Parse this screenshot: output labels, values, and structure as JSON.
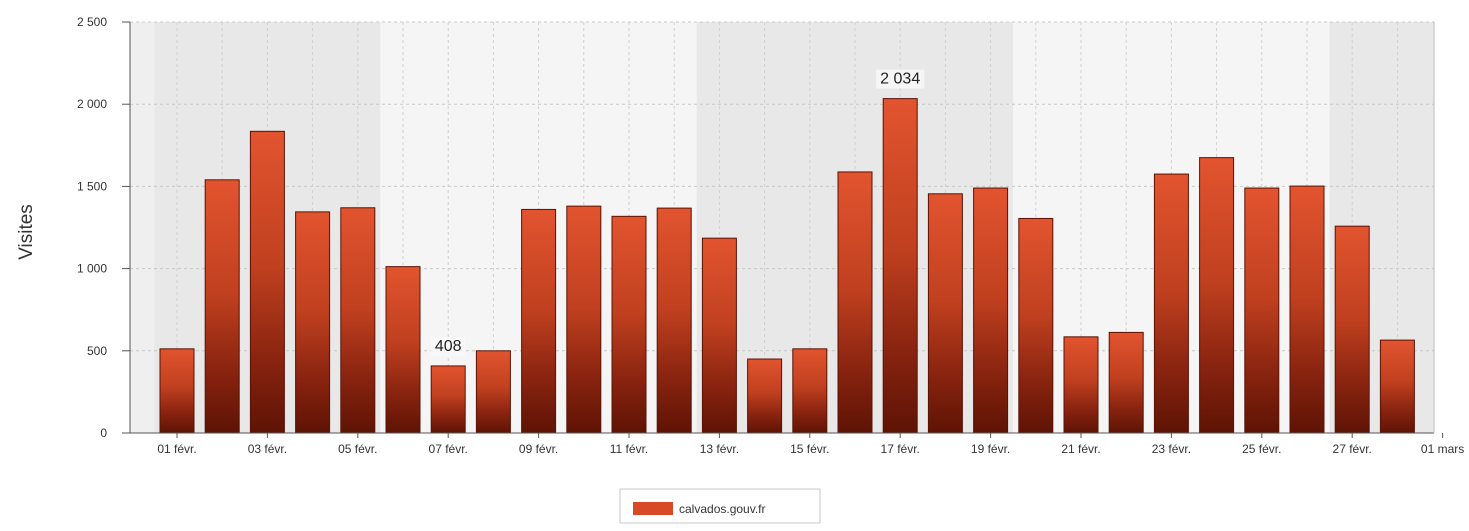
{
  "chart_data": {
    "type": "bar",
    "ylabel": "Visites",
    "xlabel": "",
    "ylim": [
      0,
      2500
    ],
    "y_ticks": [
      0,
      500,
      1000,
      1500,
      2000,
      2500
    ],
    "y_tick_labels": [
      "0",
      "500",
      "1 000",
      "1 500",
      "2 000",
      "2 500"
    ],
    "x_tick_labels": [
      "01 févr.",
      "03 févr.",
      "05 févr.",
      "07 févr.",
      "09 févr.",
      "11 févr.",
      "13 févr.",
      "15 févr.",
      "17 févr.",
      "19 févr.",
      "21 févr.",
      "23 févr.",
      "25 févr.",
      "27 févr.",
      "01 mars"
    ],
    "categories": [
      "01 févr.",
      "02 févr.",
      "03 févr.",
      "04 févr.",
      "05 févr.",
      "06 févr.",
      "07 févr.",
      "08 févr.",
      "09 févr.",
      "10 févr.",
      "11 févr.",
      "12 févr.",
      "13 févr.",
      "14 févr.",
      "15 févr.",
      "16 févr.",
      "17 févr.",
      "18 févr.",
      "19 févr.",
      "20 févr.",
      "21 févr.",
      "22 févr.",
      "23 févr.",
      "24 févr.",
      "25 févr.",
      "26 févr.",
      "27 févr.",
      "28 févr."
    ],
    "series": [
      {
        "name": "calvados.gouv.fr",
        "values": [
          512,
          1540,
          1835,
          1345,
          1370,
          1012,
          408,
          500,
          1360,
          1380,
          1318,
          1368,
          1185,
          450,
          512,
          1588,
          2034,
          1455,
          1490,
          1305,
          585,
          612,
          1575,
          1675,
          1490,
          1502,
          1258,
          565
        ]
      }
    ],
    "data_labels": [
      {
        "index": 6,
        "text": "408"
      },
      {
        "index": 16,
        "text": "2 034"
      }
    ],
    "grid": true,
    "legend_position": "bottom",
    "colors": {
      "bar_top": "#e2542f",
      "bar_bottom": "#6b1506",
      "bar_stroke": "#5a1204",
      "legend_swatch": "#d84a26",
      "grid": "#c8c8c8",
      "plot_band_light": "#f4f4f4",
      "plot_band_dark": "#e4e4e4"
    }
  }
}
